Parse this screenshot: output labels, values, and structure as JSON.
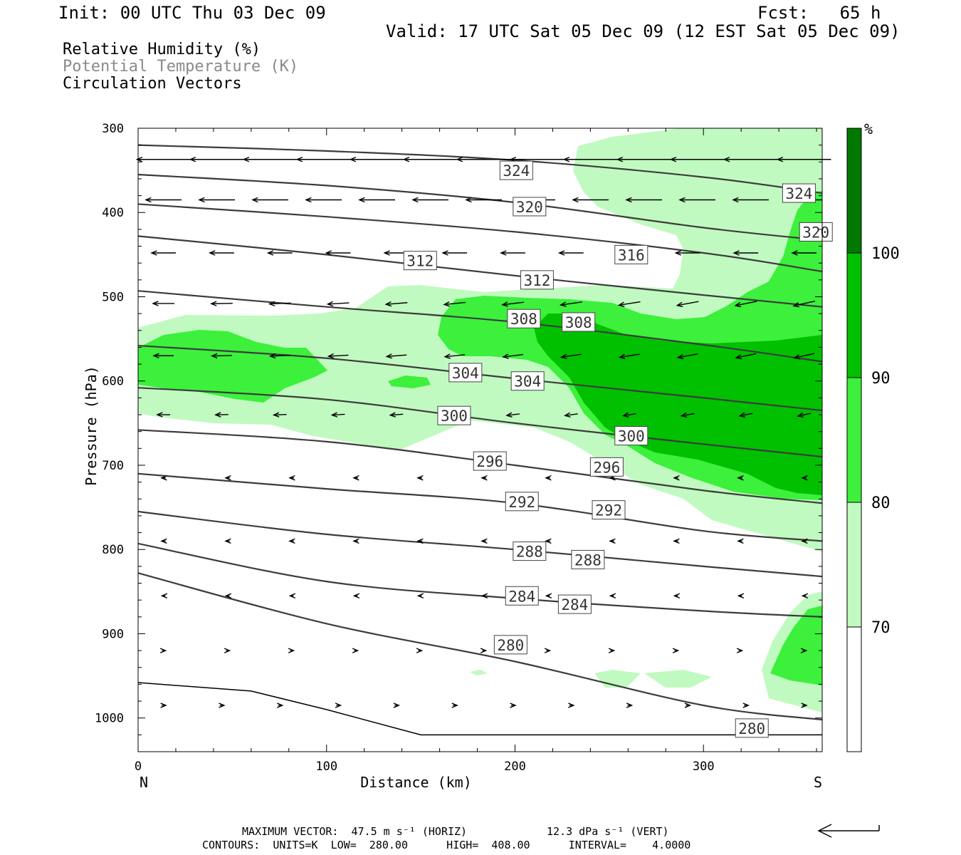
{
  "header": {
    "init": "Init: 00 UTC Thu 03 Dec 09",
    "fcst": "Fcst:   65 h",
    "valid": "Valid: 17 UTC Sat 05 Dec 09 (12 EST Sat 05 Dec 09)"
  },
  "fields": [
    "Relative Humidity (%)",
    "Potential Temperature (K)",
    "Circulation Vectors"
  ],
  "footer": {
    "max_vector": "MAXIMUM VECTOR:  47.5 m s⁻¹ (HORIZ)",
    "max_vert": "12.3 dPa s⁻¹ (VERT)",
    "contours": "CONTOURS:  UNITS=K  LOW=  280.00      HIGH=  408.00      INTERVAL=    4.0000"
  },
  "colors": {
    "rh70": "#c0fac0",
    "rh80": "#3cf03c",
    "rh90": "#00c000",
    "rh100": "#007800",
    "contour": "#3c3c3c"
  },
  "chart_data": {
    "type": "cross-section",
    "xlabel": "Distance (km)",
    "ylabel": "Pressure (hPa)",
    "xlim": [
      0,
      363
    ],
    "ylim": [
      1040,
      300
    ],
    "xticks": [
      0,
      100,
      200,
      300
    ],
    "yticks": [
      300,
      400,
      500,
      600,
      700,
      800,
      900,
      1000
    ],
    "x_end_labels": {
      "left": "N",
      "right": "S"
    },
    "colorbar": {
      "unit": "%",
      "levels": [
        70,
        80,
        90,
        100
      ],
      "colors": [
        "#ffffff",
        "#c0fac0",
        "#3cf03c",
        "#00c000",
        "#007800"
      ]
    },
    "theta_contours": [
      {
        "value": 324,
        "points": [
          [
            0,
            320
          ],
          [
            100,
            327
          ],
          [
            200,
            338
          ],
          [
            300,
            358
          ],
          [
            363,
            377
          ]
        ],
        "labels": [
          [
            192,
            350
          ],
          [
            342,
            377
          ]
        ]
      },
      {
        "value": 320,
        "points": [
          [
            0,
            355
          ],
          [
            100,
            368
          ],
          [
            200,
            388
          ],
          [
            300,
            418
          ],
          [
            363,
            433
          ]
        ],
        "labels": [
          [
            199,
            393
          ],
          [
            351,
            423
          ]
        ]
      },
      {
        "value": 316,
        "points": [
          [
            0,
            390
          ],
          [
            100,
            405
          ],
          [
            200,
            423
          ],
          [
            300,
            448
          ],
          [
            363,
            470
          ]
        ],
        "labels": [
          [
            253,
            450
          ]
        ]
      },
      {
        "value": 312,
        "points": [
          [
            0,
            428
          ],
          [
            100,
            450
          ],
          [
            200,
            475
          ],
          [
            300,
            498
          ],
          [
            363,
            512
          ]
        ],
        "labels": [
          [
            141,
            457
          ],
          [
            203,
            480
          ]
        ]
      },
      {
        "value": 308,
        "points": [
          [
            0,
            493
          ],
          [
            100,
            512
          ],
          [
            200,
            530
          ],
          [
            300,
            557
          ],
          [
            363,
            577
          ]
        ],
        "labels": [
          [
            196,
            526
          ],
          [
            225,
            530
          ]
        ]
      },
      {
        "value": 304,
        "points": [
          [
            0,
            558
          ],
          [
            100,
            573
          ],
          [
            200,
            597
          ],
          [
            300,
            620
          ],
          [
            363,
            635
          ]
        ],
        "labels": [
          [
            165,
            590
          ],
          [
            198,
            600
          ]
        ]
      },
      {
        "value": 300,
        "points": [
          [
            0,
            608
          ],
          [
            100,
            622
          ],
          [
            200,
            650
          ],
          [
            300,
            675
          ],
          [
            363,
            690
          ]
        ],
        "labels": [
          [
            159,
            641
          ],
          [
            253,
            665
          ]
        ]
      },
      {
        "value": 296,
        "points": [
          [
            0,
            658
          ],
          [
            100,
            672
          ],
          [
            200,
            700
          ],
          [
            300,
            730
          ],
          [
            363,
            745
          ]
        ],
        "labels": [
          [
            178,
            695
          ],
          [
            240,
            702
          ]
        ]
      },
      {
        "value": 292,
        "points": [
          [
            0,
            710
          ],
          [
            100,
            728
          ],
          [
            200,
            745
          ],
          [
            300,
            778
          ],
          [
            363,
            790
          ]
        ],
        "labels": [
          [
            195,
            743
          ],
          [
            241,
            753
          ]
        ]
      },
      {
        "value": 288,
        "points": [
          [
            0,
            755
          ],
          [
            100,
            782
          ],
          [
            200,
            800
          ],
          [
            300,
            820
          ],
          [
            363,
            832
          ]
        ],
        "labels": [
          [
            199,
            802
          ],
          [
            230,
            812
          ]
        ]
      },
      {
        "value": 284,
        "points": [
          [
            0,
            793
          ],
          [
            100,
            838
          ],
          [
            200,
            858
          ],
          [
            300,
            873
          ],
          [
            363,
            880
          ]
        ],
        "labels": [
          [
            195,
            855
          ],
          [
            223,
            865
          ]
        ]
      },
      {
        "value": 280,
        "points": [
          [
            0,
            828
          ],
          [
            100,
            888
          ],
          [
            200,
            933
          ],
          [
            300,
            985
          ],
          [
            363,
            1002
          ]
        ],
        "labels": [
          [
            189,
            913
          ],
          [
            317,
            1012
          ]
        ]
      }
    ],
    "vectors": [
      {
        "x": 300,
        "p": 340,
        "u": -30,
        "w": 0
      },
      {
        "x": 200,
        "p": 345,
        "u": -32,
        "w": 0
      },
      {
        "x": 100,
        "p": 350,
        "u": -28,
        "w": 0
      },
      {
        "x": 300,
        "p": 420,
        "u": -25,
        "w": 0
      },
      {
        "x": 200,
        "p": 430,
        "u": -22,
        "w": 0
      },
      {
        "x": 100,
        "p": 440,
        "u": -20,
        "w": 0
      },
      {
        "x": 300,
        "p": 540,
        "u": -12,
        "w": 2
      },
      {
        "x": 200,
        "p": 560,
        "u": -15,
        "w": 0
      },
      {
        "x": 100,
        "p": 575,
        "u": -12,
        "w": 0
      },
      {
        "x": 300,
        "p": 680,
        "u": -8,
        "w": 2
      },
      {
        "x": 100,
        "p": 690,
        "u": -6,
        "w": 0
      }
    ],
    "terrain_hpa": [
      [
        0,
        958
      ],
      [
        60,
        968
      ],
      [
        100,
        990
      ],
      [
        150,
        1020
      ],
      [
        200,
        1020
      ],
      [
        363,
        1020
      ]
    ]
  }
}
